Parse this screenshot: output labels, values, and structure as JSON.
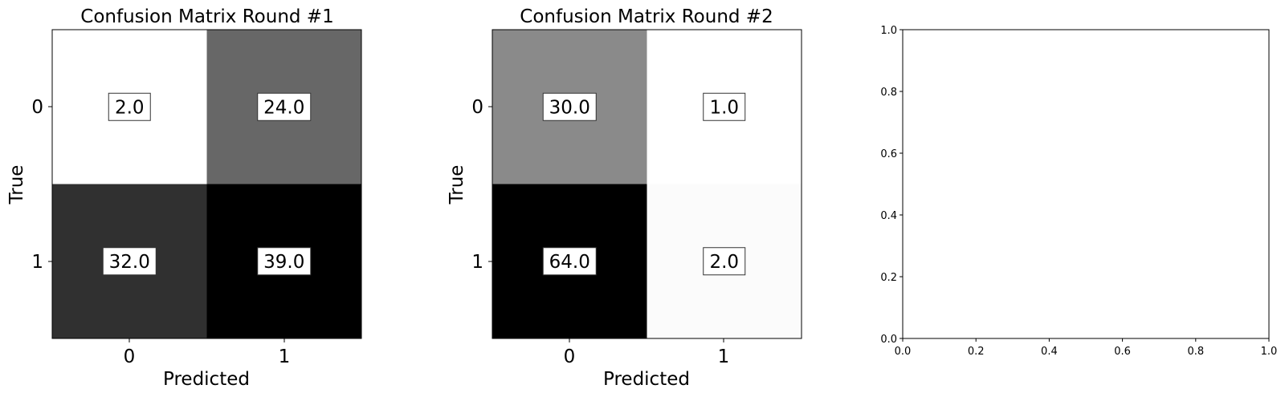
{
  "chart_data": [
    {
      "type": "heatmap",
      "title": "Confusion Matrix Round #1",
      "xlabel": "Predicted",
      "ylabel": "True",
      "x_categories": [
        "0",
        "1"
      ],
      "y_categories": [
        "0",
        "1"
      ],
      "values": [
        [
          2.0,
          24.0
        ],
        [
          32.0,
          39.0
        ]
      ],
      "labels": [
        [
          "2.0",
          "24.0"
        ],
        [
          "32.0",
          "39.0"
        ]
      ],
      "colormap": "gray_r",
      "vmin": 2.0,
      "vmax": 39.0
    },
    {
      "type": "heatmap",
      "title": "Confusion Matrix Round #2",
      "xlabel": "Predicted",
      "ylabel": "True",
      "x_categories": [
        "0",
        "1"
      ],
      "y_categories": [
        "0",
        "1"
      ],
      "values": [
        [
          30.0,
          1.0
        ],
        [
          64.0,
          2.0
        ]
      ],
      "labels": [
        [
          "30.0",
          "1.0"
        ],
        [
          "64.0",
          "2.0"
        ]
      ],
      "colormap": "gray_r",
      "vmin": 1.0,
      "vmax": 64.0
    },
    {
      "type": "scatter",
      "title": "",
      "xlabel": "",
      "ylabel": "",
      "xlim": [
        0.0,
        1.0
      ],
      "ylim": [
        0.0,
        1.0
      ],
      "x_ticks": [
        "0.0",
        "0.2",
        "0.4",
        "0.6",
        "0.8",
        "1.0"
      ],
      "y_ticks": [
        "0.0",
        "0.2",
        "0.4",
        "0.6",
        "0.8",
        "1.0"
      ],
      "series": []
    }
  ]
}
